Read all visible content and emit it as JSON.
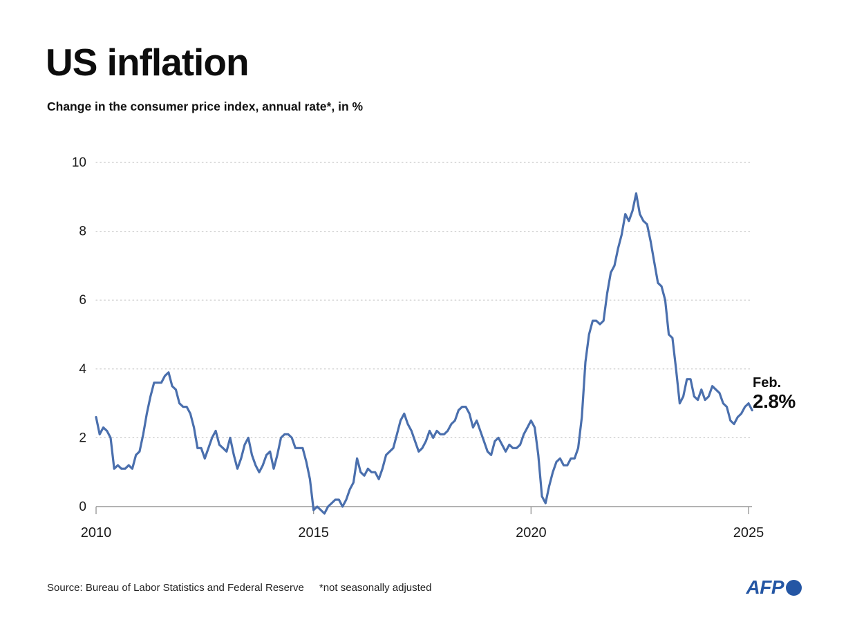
{
  "header": {
    "title": "US inflation",
    "subtitle": "Change in the consumer price index, annual rate*, in %"
  },
  "annotation": {
    "period": "Feb.",
    "value": "2.8%"
  },
  "footer": {
    "source": "Source: Bureau of Labor Statistics and Federal Reserve",
    "footnote": "*not seasonally adjusted",
    "brand": "AFP"
  },
  "colors": {
    "line": "#4a6fad",
    "grid": "#c7c7c7",
    "axis": "#9a9a9a",
    "text": "#1a1a1a",
    "brand": "#2456a4"
  },
  "chart_data": {
    "type": "line",
    "title": "US inflation",
    "subtitle": "Change in the consumer price index, annual rate*, in %",
    "unit": "%",
    "frequency": "monthly",
    "start": "2010-01",
    "end": "2025-02",
    "x_ticks": [
      "2010",
      "2015",
      "2020",
      "2025"
    ],
    "x_tick_years": [
      2010,
      2015,
      2020,
      2025
    ],
    "y_ticks": [
      0,
      2,
      4,
      6,
      8,
      10
    ],
    "ylim": [
      0,
      10
    ],
    "grid": "dotted-horizontal",
    "legend": "none",
    "latest_point": {
      "label": "Feb.",
      "value": 2.8
    },
    "values": [
      2.6,
      2.1,
      2.3,
      2.2,
      2.0,
      1.1,
      1.2,
      1.1,
      1.1,
      1.2,
      1.1,
      1.5,
      1.6,
      2.1,
      2.7,
      3.2,
      3.6,
      3.6,
      3.6,
      3.8,
      3.9,
      3.5,
      3.4,
      3.0,
      2.9,
      2.9,
      2.7,
      2.3,
      1.7,
      1.7,
      1.4,
      1.7,
      2.0,
      2.2,
      1.8,
      1.7,
      1.6,
      2.0,
      1.5,
      1.1,
      1.4,
      1.8,
      2.0,
      1.5,
      1.2,
      1.0,
      1.2,
      1.5,
      1.6,
      1.1,
      1.5,
      2.0,
      2.1,
      2.1,
      2.0,
      1.7,
      1.7,
      1.7,
      1.3,
      0.8,
      -0.1,
      0.0,
      -0.1,
      -0.2,
      0.0,
      0.1,
      0.2,
      0.2,
      0.0,
      0.2,
      0.5,
      0.7,
      1.4,
      1.0,
      0.9,
      1.1,
      1.0,
      1.0,
      0.8,
      1.1,
      1.5,
      1.6,
      1.7,
      2.1,
      2.5,
      2.7,
      2.4,
      2.2,
      1.9,
      1.6,
      1.7,
      1.9,
      2.2,
      2.0,
      2.2,
      2.1,
      2.1,
      2.2,
      2.4,
      2.5,
      2.8,
      2.9,
      2.9,
      2.7,
      2.3,
      2.5,
      2.2,
      1.9,
      1.6,
      1.5,
      1.9,
      2.0,
      1.8,
      1.6,
      1.8,
      1.7,
      1.7,
      1.8,
      2.1,
      2.3,
      2.5,
      2.3,
      1.5,
      0.3,
      0.1,
      0.6,
      1.0,
      1.3,
      1.4,
      1.2,
      1.2,
      1.4,
      1.4,
      1.7,
      2.6,
      4.2,
      5.0,
      5.4,
      5.4,
      5.3,
      5.4,
      6.2,
      6.8,
      7.0,
      7.5,
      7.9,
      8.5,
      8.3,
      8.6,
      9.1,
      8.5,
      8.3,
      8.2,
      7.7,
      7.1,
      6.5,
      6.4,
      6.0,
      5.0,
      4.9,
      4.0,
      3.0,
      3.2,
      3.7,
      3.7,
      3.2,
      3.1,
      3.4,
      3.1,
      3.2,
      3.5,
      3.4,
      3.3,
      3.0,
      2.9,
      2.5,
      2.4,
      2.6,
      2.7,
      2.9,
      3.0,
      2.8
    ]
  }
}
